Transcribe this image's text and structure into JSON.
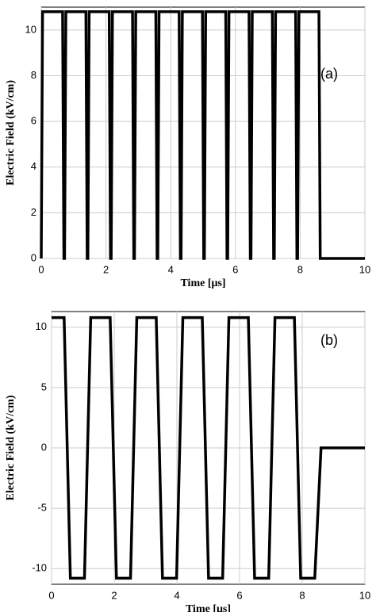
{
  "chart_data": [
    {
      "type": "line",
      "annotation": "(a)",
      "xlabel": "Time [μs]",
      "ylabel": "Electric Field (kV/cm)",
      "x": [
        0,
        0.04,
        0.66,
        0.7,
        0.72,
        0.76,
        1.38,
        1.42,
        1.44,
        1.48,
        2.1,
        2.14,
        2.16,
        2.2,
        2.82,
        2.86,
        2.88,
        2.92,
        3.54,
        3.58,
        3.6,
        3.64,
        4.26,
        4.3,
        4.32,
        4.36,
        4.98,
        5.02,
        5.04,
        5.08,
        5.7,
        5.74,
        5.76,
        5.8,
        6.42,
        6.46,
        6.48,
        6.52,
        7.14,
        7.18,
        7.2,
        7.24,
        7.86,
        7.9,
        7.92,
        7.96,
        8.58,
        8.62,
        10
      ],
      "series": [
        {
          "color": "#000000",
          "values": [
            0,
            10.8,
            10.8,
            0,
            0,
            10.8,
            10.8,
            0,
            0,
            10.8,
            10.8,
            0,
            0,
            10.8,
            10.8,
            0,
            0,
            10.8,
            10.8,
            0,
            0,
            10.8,
            10.8,
            0,
            0,
            10.8,
            10.8,
            0,
            0,
            10.8,
            10.8,
            0,
            0,
            10.8,
            10.8,
            0,
            0,
            10.8,
            10.8,
            0,
            0,
            10.8,
            10.8,
            0,
            0,
            10.8,
            10.8,
            0,
            0
          ]
        }
      ],
      "xlim": [
        0,
        10
      ],
      "xticks": [
        0,
        2,
        4,
        6,
        8,
        10
      ],
      "ylim": [
        0,
        11
      ],
      "yticks": [
        0,
        2,
        4,
        6,
        8,
        10
      ],
      "grid": true
    },
    {
      "type": "line",
      "annotation": "(b)",
      "xlabel": "Time [μs]",
      "ylabel": "Electric Field (kV/cm)",
      "x": [
        0,
        0.4,
        0.6,
        1.05,
        1.25,
        1.87,
        2.07,
        2.52,
        2.72,
        3.34,
        3.54,
        3.99,
        4.19,
        4.81,
        5.01,
        5.46,
        5.66,
        6.28,
        6.48,
        6.93,
        7.13,
        7.75,
        7.95,
        8.4,
        8.6,
        10
      ],
      "series": [
        {
          "color": "#000000",
          "values": [
            10.8,
            10.8,
            -10.8,
            -10.8,
            10.8,
            10.8,
            -10.8,
            -10.8,
            10.8,
            10.8,
            -10.8,
            -10.8,
            10.8,
            10.8,
            -10.8,
            -10.8,
            10.8,
            10.8,
            -10.8,
            -10.8,
            10.8,
            10.8,
            -10.8,
            -10.8,
            0,
            0
          ]
        }
      ],
      "xlim": [
        0,
        10
      ],
      "xticks": [
        0,
        2,
        4,
        6,
        8,
        10
      ],
      "ylim": [
        -11.3,
        11.3
      ],
      "yticks": [
        -10,
        -5,
        0,
        5,
        10
      ],
      "grid": true
    }
  ]
}
